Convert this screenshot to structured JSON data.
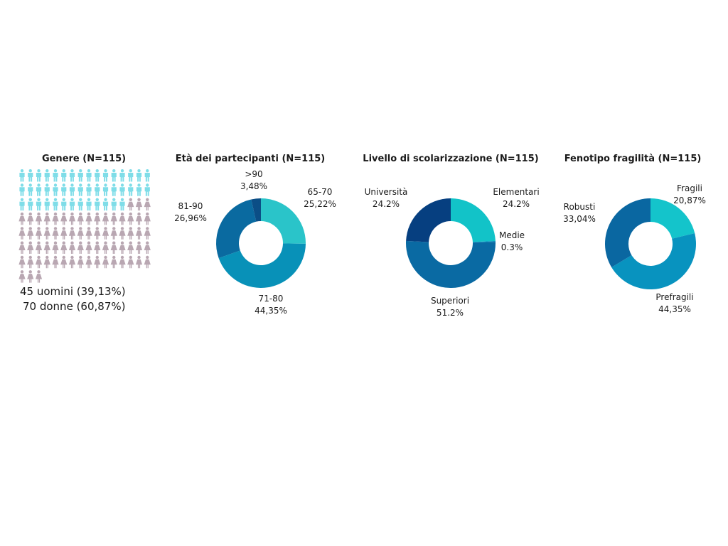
{
  "chart_data": [
    {
      "type": "pictograph",
      "title": "Genere (N=115)",
      "categories": [
        "uomini",
        "donne"
      ],
      "values": [
        45,
        70
      ],
      "labels": [
        "45 uomini (39,13%)",
        "70 donne (60,87%)"
      ],
      "colors": [
        "#7fdde8",
        "#b9a7b2"
      ],
      "icons": [
        "man-icon",
        "woman-icon"
      ]
    },
    {
      "type": "pie",
      "title": "Età dei partecipanti (N=115)",
      "categories": [
        "65-70",
        "71-80",
        "81-90",
        ">90"
      ],
      "values": [
        25.22,
        44.35,
        26.96,
        3.48
      ],
      "value_labels": [
        "25,22%",
        "44,35%",
        "26,96%",
        "3,48%"
      ],
      "colors": [
        "#2ac4c9",
        "#0891b8",
        "#0a6aa0",
        "#0b4e86"
      ]
    },
    {
      "type": "pie",
      "title": "Livello di scolarizzazione (N=115)",
      "categories": [
        "Elementari",
        "Medie",
        "Superiori",
        "Università"
      ],
      "values": [
        24.2,
        0.3,
        51.2,
        24.2
      ],
      "value_labels": [
        "24.2%",
        "0.3%",
        "51.2%",
        "24.2%"
      ],
      "colors": [
        "#12c3c8",
        "#0b8fbf",
        "#0a6aa3",
        "#063f80"
      ]
    },
    {
      "type": "pie",
      "title": "Fenotipo fragilità (N=115)",
      "categories": [
        "Fragili",
        "Prefragili",
        "Robusti"
      ],
      "values": [
        20.87,
        44.35,
        33.04
      ],
      "value_labels": [
        "20,87%",
        "44,35%",
        "33,04%"
      ],
      "colors": [
        "#14c4cb",
        "#0893bf",
        "#0a67a1"
      ]
    }
  ]
}
